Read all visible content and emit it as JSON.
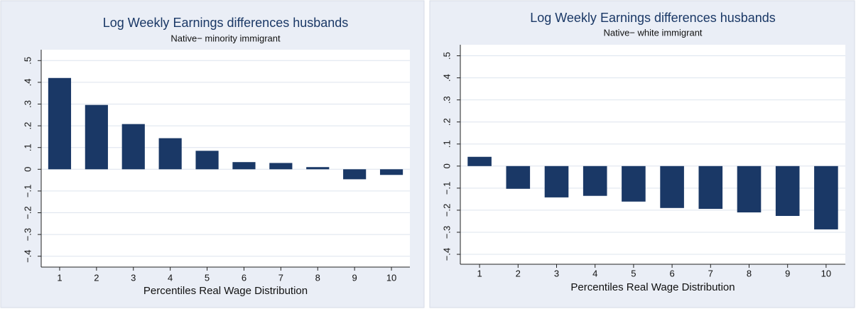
{
  "chart_data": [
    {
      "type": "bar",
      "title": "Log Weekly Earnings differences husbands",
      "subtitle": "Native− minority immigrant",
      "x_label": "Percentiles Real Wage Distribution",
      "categories": [
        "1",
        "2",
        "3",
        "4",
        "5",
        "6",
        "7",
        "8",
        "9",
        "10"
      ],
      "values": [
        0.42,
        0.296,
        0.208,
        0.143,
        0.085,
        0.033,
        0.029,
        0.01,
        -0.046,
        -0.026
      ],
      "color": "#1a3866",
      "ylim": [
        -0.45,
        0.55
      ],
      "yticks": [
        {
          "value": -0.4,
          "label": "−.4"
        },
        {
          "value": -0.3,
          "label": "−.3"
        },
        {
          "value": -0.2,
          "label": "−.2"
        },
        {
          "value": -0.1,
          "label": "−.1"
        },
        0,
        {
          "value": 0.1,
          "label": ".1"
        },
        {
          "value": 0.2,
          "label": ".2"
        },
        {
          "value": 0.3,
          "label": ".3"
        },
        {
          "value": 0.4,
          "label": ".4"
        },
        {
          "value": 0.5,
          "label": ".5"
        }
      ],
      "grid": true
    },
    {
      "type": "bar",
      "title": "Log Weekly Earnings differences husbands",
      "subtitle": "Native− white immigrant",
      "x_label": "Percentiles Real Wage Distribution",
      "categories": [
        "1",
        "2",
        "3",
        "4",
        "5",
        "6",
        "7",
        "8",
        "9",
        "10"
      ],
      "values": [
        0.042,
        -0.103,
        -0.142,
        -0.135,
        -0.161,
        -0.19,
        -0.194,
        -0.21,
        -0.226,
        -0.287
      ],
      "color": "#1a3866",
      "ylim": [
        -0.445,
        0.55
      ],
      "yticks": [
        {
          "value": -0.4,
          "label": "−.4"
        },
        {
          "value": -0.3,
          "label": "−.3"
        },
        {
          "value": -0.2,
          "label": "−.2"
        },
        {
          "value": -0.1,
          "label": "−.1"
        },
        0,
        {
          "value": 0.1,
          "label": ".1"
        },
        {
          "value": 0.2,
          "label": ".2"
        },
        {
          "value": 0.3,
          "label": ".3"
        },
        {
          "value": 0.4,
          "label": ".4"
        },
        {
          "value": 0.5,
          "label": ".5"
        }
      ],
      "grid": true
    }
  ]
}
